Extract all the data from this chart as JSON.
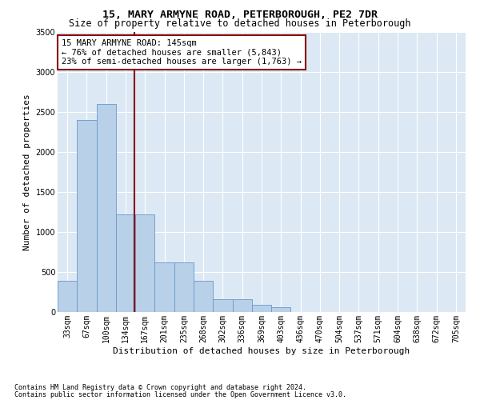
{
  "title": "15, MARY ARMYNE ROAD, PETERBOROUGH, PE2 7DR",
  "subtitle": "Size of property relative to detached houses in Peterborough",
  "xlabel": "Distribution of detached houses by size in Peterborough",
  "ylabel": "Number of detached properties",
  "footnote1": "Contains HM Land Registry data © Crown copyright and database right 2024.",
  "footnote2": "Contains public sector information licensed under the Open Government Licence v3.0.",
  "bar_labels": [
    "33sqm",
    "67sqm",
    "100sqm",
    "134sqm",
    "167sqm",
    "201sqm",
    "235sqm",
    "268sqm",
    "302sqm",
    "336sqm",
    "369sqm",
    "403sqm",
    "436sqm",
    "470sqm",
    "504sqm",
    "537sqm",
    "571sqm",
    "604sqm",
    "638sqm",
    "672sqm",
    "705sqm"
  ],
  "bar_values": [
    390,
    2400,
    2600,
    1220,
    1220,
    620,
    620,
    390,
    165,
    165,
    95,
    60,
    0,
    0,
    0,
    0,
    0,
    0,
    0,
    0,
    0
  ],
  "bar_color": "#b8d0e8",
  "bar_edgecolor": "#6699cc",
  "bg_color": "#dce9f5",
  "property_line_x": 3.45,
  "property_line_color": "#8b0000",
  "annotation_text": "15 MARY ARMYNE ROAD: 145sqm\n← 76% of detached houses are smaller (5,843)\n23% of semi-detached houses are larger (1,763) →",
  "annotation_box_color": "#8b0000",
  "ylim": [
    0,
    3500
  ],
  "yticks": [
    0,
    500,
    1000,
    1500,
    2000,
    2500,
    3000,
    3500
  ],
  "title_fontsize": 9.5,
  "subtitle_fontsize": 8.5,
  "annot_fontsize": 7.5,
  "xlabel_fontsize": 8,
  "ylabel_fontsize": 8,
  "tick_fontsize": 7
}
